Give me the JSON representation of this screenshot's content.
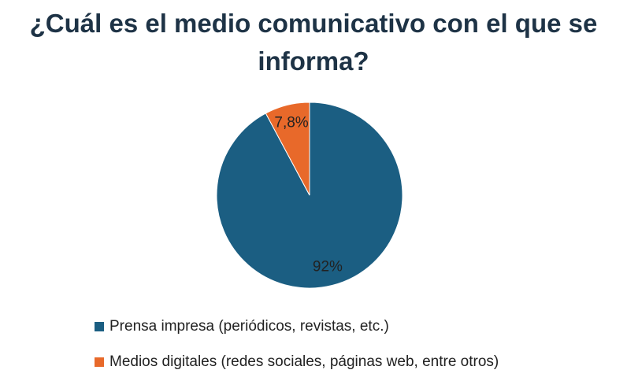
{
  "chart_data": {
    "type": "pie",
    "title": "¿Cuál es el medio comunicativo con el que se informa?",
    "categories": [
      "Prensa impresa (periódicos, revistas, etc.)",
      "Medios digitales (redes sociales, páginas web, entre otros)"
    ],
    "values": [
      92,
      7.8
    ],
    "value_labels": [
      "92%",
      "7,8%"
    ],
    "colors": [
      "#1b5e82",
      "#e8692a"
    ],
    "legend": "bottom"
  }
}
